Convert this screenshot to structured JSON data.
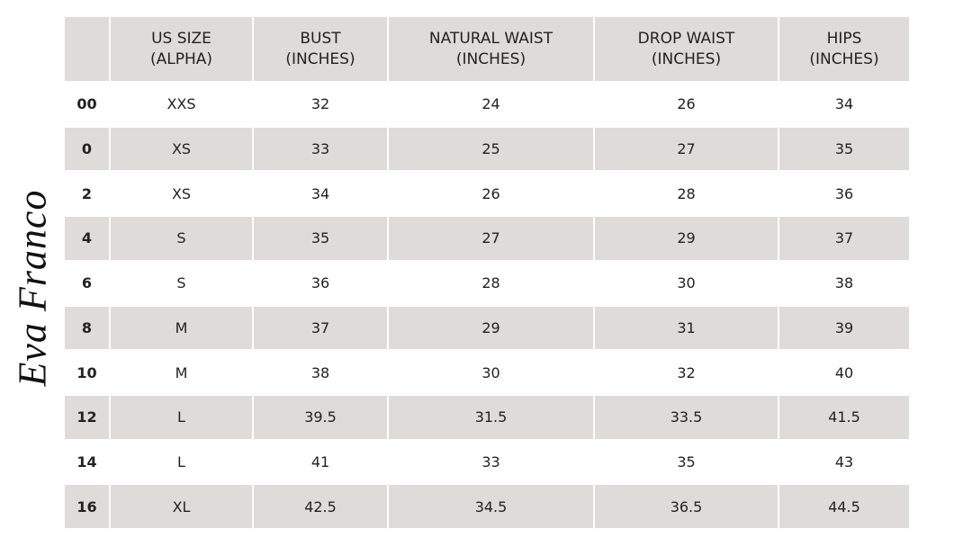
{
  "brand": "Eva Franco",
  "table": {
    "header": [
      [],
      [
        "US SIZE",
        "(ALPHA)"
      ],
      [
        "BUST",
        "(INCHES)"
      ],
      [
        "NATURAL WAIST",
        "(INCHES)"
      ],
      [
        "DROP WAIST",
        "(INCHES)"
      ],
      [
        "HIPS",
        "(INCHES)"
      ]
    ],
    "rows": [
      [
        "00",
        "XXS",
        "32",
        "24",
        "26",
        "34"
      ],
      [
        "0",
        "XS",
        "33",
        "25",
        "27",
        "35"
      ],
      [
        "2",
        "XS",
        "34",
        "26",
        "28",
        "36"
      ],
      [
        "4",
        "S",
        "35",
        "27",
        "29",
        "37"
      ],
      [
        "6",
        "S",
        "36",
        "28",
        "30",
        "38"
      ],
      [
        "8",
        "M",
        "37",
        "29",
        "31",
        "39"
      ],
      [
        "10",
        "M",
        "38",
        "30",
        "32",
        "40"
      ],
      [
        "12",
        "L",
        "39.5",
        "31.5",
        "33.5",
        "41.5"
      ],
      [
        "14",
        "L",
        "41",
        "33",
        "35",
        "43"
      ],
      [
        "16",
        "XL",
        "42.5",
        "34.5",
        "36.5",
        "44.5"
      ]
    ]
  }
}
